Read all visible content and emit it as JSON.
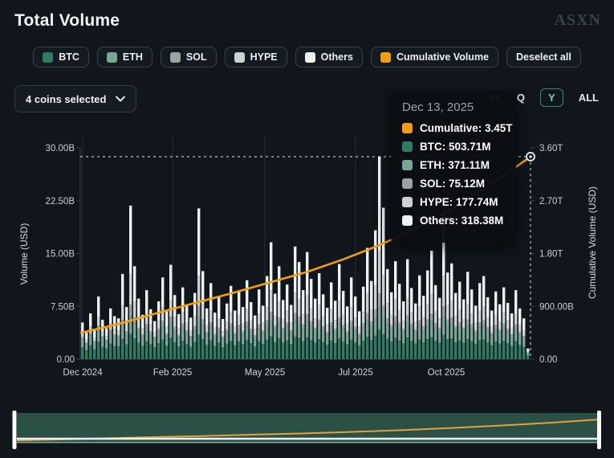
{
  "header": {
    "title": "Total Volume",
    "brand": "ASXN"
  },
  "legend": {
    "items": [
      {
        "id": "btc",
        "label": "BTC",
        "color": "#2e7d62",
        "selected": true
      },
      {
        "id": "eth",
        "label": "ETH",
        "color": "#79a795",
        "selected": true
      },
      {
        "id": "sol",
        "label": "SOL",
        "color": "#9da3a3",
        "selected": true
      },
      {
        "id": "hype",
        "label": "HYPE",
        "color": "#ccd1d1",
        "selected": true
      },
      {
        "id": "others",
        "label": "Others",
        "color": "#eef1f1",
        "selected": true
      },
      {
        "id": "cumulative",
        "label": "Cumulative Volume",
        "color": "#f59e0b",
        "selected": true
      }
    ],
    "deselect_label": "Deselect all"
  },
  "controls": {
    "coins_dropdown": {
      "label": "4 coins selected"
    },
    "ranges": [
      {
        "label": "M",
        "selected": false
      },
      {
        "label": "Q",
        "selected": false
      },
      {
        "label": "Y",
        "selected": true
      },
      {
        "label": "ALL",
        "selected": false
      }
    ]
  },
  "tooltip": {
    "date": "Dec 13, 2025",
    "rows": [
      {
        "label": "Cumulative",
        "value": "3.45T",
        "color": "#f59e0b"
      },
      {
        "label": "BTC",
        "value": "503.71M",
        "color": "#2e7d62"
      },
      {
        "label": "ETH",
        "value": "371.11M",
        "color": "#79a795"
      },
      {
        "label": "SOL",
        "value": "75.12M",
        "color": "#9da3a3"
      },
      {
        "label": "HYPE",
        "value": "177.74M",
        "color": "#ccd1d1"
      },
      {
        "label": "Others",
        "value": "318.38M",
        "color": "#eef1f1"
      }
    ]
  },
  "chart_data": {
    "type": "bar",
    "subtype": "stacked-bars-with-cumulative-line",
    "title": "Total Volume",
    "left_axis": {
      "label": "Volume (USD)",
      "ticks": [
        "0.00",
        "7.50B",
        "15.00B",
        "22.50B",
        "30.00B"
      ],
      "min": 0,
      "max_billions": 30
    },
    "right_axis": {
      "label": "Cumulative Volume (USD)",
      "ticks": [
        "0.00",
        "900.00B",
        "1.80T",
        "2.70T",
        "3.60T"
      ],
      "min": 0,
      "max_trillions": 3.6
    },
    "x_ticks": [
      "Dec 2024",
      "Feb 2025",
      "May 2025",
      "Jul 2025",
      "Oct 2025"
    ],
    "x_range": [
      "Dec 2024",
      "Dec 13, 2025"
    ],
    "grid": "vertical-month-lines",
    "legend_position": "top",
    "stack_order": [
      "BTC",
      "ETH",
      "SOL",
      "HYPE",
      "Others"
    ],
    "series_colors": {
      "BTC": "#2e7d62",
      "ETH": "#79a795",
      "SOL": "#9da3a3",
      "HYPE": "#ccd1d1",
      "Others": "#eef1f1",
      "Cumulative Volume": "#f59e0b"
    },
    "green_split": {
      "btc": 0.58,
      "eth": 0.42
    },
    "light_split": {
      "sol": 0.1,
      "hype": 0.28,
      "others": 0.62
    },
    "bars_units": "billions USD per day, [total, teal_portion] estimated from pixels",
    "bars": [
      [
        5.2,
        2.9
      ],
      [
        3.8,
        2.2
      ],
      [
        6.5,
        3.4
      ],
      [
        4.2,
        2.4
      ],
      [
        8.9,
        4.3
      ],
      [
        5.6,
        3.0
      ],
      [
        4.4,
        2.6
      ],
      [
        7.2,
        3.8
      ],
      [
        6.1,
        3.2
      ],
      [
        5.8,
        3.1
      ],
      [
        12.1,
        4.9
      ],
      [
        7.4,
        3.6
      ],
      [
        21.8,
        6.2
      ],
      [
        13.2,
        5.1
      ],
      [
        8.6,
        4.0
      ],
      [
        6.3,
        3.2
      ],
      [
        9.8,
        4.4
      ],
      [
        7.1,
        3.6
      ],
      [
        5.4,
        2.9
      ],
      [
        8.2,
        3.9
      ],
      [
        11.6,
        4.8
      ],
      [
        6.8,
        3.3
      ],
      [
        13.4,
        5.2
      ],
      [
        9.1,
        4.1
      ],
      [
        6.4,
        3.1
      ],
      [
        10.2,
        4.5
      ],
      [
        7.8,
        3.7
      ],
      [
        5.9,
        3.0
      ],
      [
        9.4,
        4.2
      ],
      [
        21.4,
        6.0
      ],
      [
        12.5,
        4.9
      ],
      [
        7.2,
        3.5
      ],
      [
        10.8,
        4.6
      ],
      [
        6.6,
        3.2
      ],
      [
        8.8,
        4.0
      ],
      [
        5.7,
        2.9
      ],
      [
        7.9,
        3.8
      ],
      [
        10.4,
        4.5
      ],
      [
        6.9,
        3.4
      ],
      [
        9.6,
        4.3
      ],
      [
        7.4,
        3.6
      ],
      [
        11.2,
        4.7
      ],
      [
        8.1,
        3.9
      ],
      [
        6.2,
        3.1
      ],
      [
        9.9,
        4.4
      ],
      [
        7.6,
        3.7
      ],
      [
        11.8,
        4.8
      ],
      [
        16.6,
        5.6
      ],
      [
        9.3,
        4.2
      ],
      [
        13.2,
        5.1
      ],
      [
        8.4,
        4.0
      ],
      [
        10.6,
        4.6
      ],
      [
        7.7,
        3.7
      ],
      [
        16.0,
        5.5
      ],
      [
        13.8,
        5.2
      ],
      [
        9.8,
        4.4
      ],
      [
        15.2,
        5.4
      ],
      [
        11.4,
        4.7
      ],
      [
        8.6,
        4.0
      ],
      [
        12.2,
        4.9
      ],
      [
        9.2,
        4.2
      ],
      [
        7.3,
        3.5
      ],
      [
        10.9,
        4.6
      ],
      [
        8.3,
        3.9
      ],
      [
        13.5,
        5.1
      ],
      [
        9.7,
        4.3
      ],
      [
        7.5,
        3.6
      ],
      [
        11.6,
        4.8
      ],
      [
        8.9,
        4.1
      ],
      [
        6.8,
        3.3
      ],
      [
        10.3,
        4.5
      ],
      [
        15.8,
        5.5
      ],
      [
        11.1,
        4.7
      ],
      [
        18.3,
        5.8
      ],
      [
        28.8,
        7.2
      ],
      [
        21.5,
        6.1
      ],
      [
        12.8,
        5.0
      ],
      [
        9.5,
        4.3
      ],
      [
        13.9,
        5.2
      ],
      [
        10.7,
        4.6
      ],
      [
        8.2,
        3.9
      ],
      [
        14.2,
        5.3
      ],
      [
        10.1,
        4.5
      ],
      [
        7.9,
        3.8
      ],
      [
        11.9,
        4.8
      ],
      [
        9.0,
        4.1
      ],
      [
        12.6,
        4.9
      ],
      [
        15.4,
        5.4
      ],
      [
        10.5,
        4.5
      ],
      [
        8.7,
        4.0
      ],
      [
        21.2,
        6.0
      ],
      [
        12.3,
        4.9
      ],
      [
        13.6,
        5.1
      ],
      [
        9.4,
        4.2
      ],
      [
        11.0,
        4.6
      ],
      [
        8.5,
        4.0
      ],
      [
        12.4,
        4.9
      ],
      [
        9.9,
        4.4
      ],
      [
        7.6,
        3.7
      ],
      [
        10.8,
        4.6
      ],
      [
        11.8,
        4.8
      ],
      [
        8.8,
        4.1
      ],
      [
        6.9,
        3.4
      ],
      [
        9.6,
        4.3
      ],
      [
        7.8,
        3.8
      ],
      [
        10.2,
        4.5
      ],
      [
        8.0,
        3.9
      ],
      [
        6.5,
        3.2
      ],
      [
        9.8,
        4.4
      ],
      [
        7.2,
        3.5
      ],
      [
        5.8,
        3.0
      ],
      [
        1.5,
        0.9
      ]
    ],
    "cumulative_line_trillions": [
      0.45,
      0.6,
      0.78,
      0.95,
      1.12,
      1.3,
      1.48,
      1.7,
      1.95,
      2.25,
      2.6,
      3.0,
      3.45
    ],
    "crosshair": {
      "date": "Dec 13, 2025",
      "cumulative_trillions": 3.45,
      "style": "dashed-white-with-ring-marker"
    }
  },
  "minimap": {
    "band_color": "#2b5146",
    "line_color": "#e2a238",
    "baseline_color": "#eef2f4",
    "handle_color": "#ffffff",
    "selection": "full range"
  },
  "colors": {
    "background": "#10161c",
    "accent_orange": "#f59e0b",
    "accent_teal_border": "#3e8674",
    "axis_text": "#c9ced3"
  }
}
